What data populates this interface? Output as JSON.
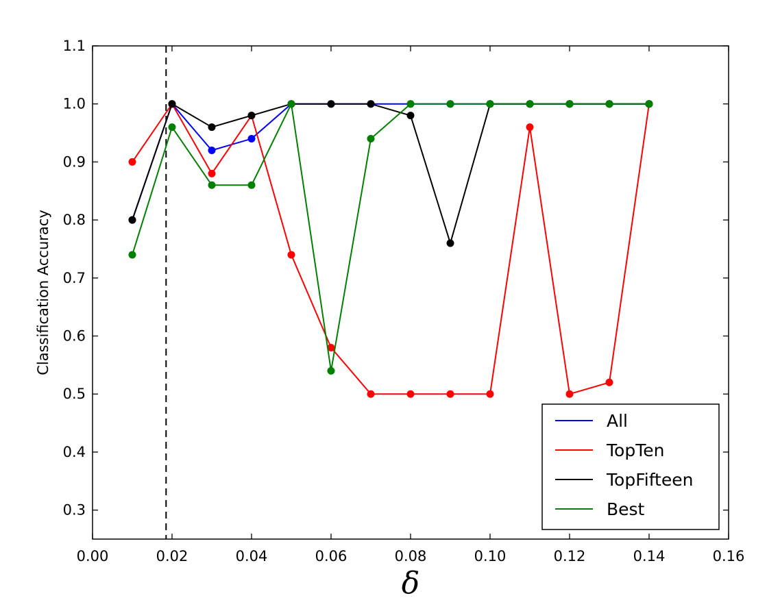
{
  "chart_data": {
    "type": "line",
    "title": "",
    "xlabel": "δ",
    "ylabel": "Classification Accuracy",
    "xlim": [
      0.0,
      0.16
    ],
    "ylim": [
      0.25,
      1.1
    ],
    "xticks": [
      "0.00",
      "0.02",
      "0.04",
      "0.06",
      "0.08",
      "0.10",
      "0.12",
      "0.14",
      "0.16"
    ],
    "yticks": [
      "0.3",
      "0.4",
      "0.5",
      "0.6",
      "0.7",
      "0.8",
      "0.9",
      "1.0",
      "1.1"
    ],
    "grid": false,
    "legend_position": "lower-right",
    "vline": {
      "x": 0.0185,
      "style": "dashed",
      "color": "#000000"
    },
    "x": [
      0.01,
      0.02,
      0.03,
      0.04,
      0.05,
      0.06,
      0.07,
      0.08,
      0.09,
      0.1,
      0.11,
      0.12,
      0.13,
      0.14
    ],
    "series": [
      {
        "name": "All",
        "color": "#0000ff",
        "values": [
          0.8,
          1.0,
          0.92,
          0.94,
          1.0,
          1.0,
          1.0,
          1.0,
          1.0,
          1.0,
          1.0,
          1.0,
          1.0,
          1.0
        ]
      },
      {
        "name": "TopTen",
        "color": "#ff0000",
        "values": [
          0.9,
          1.0,
          0.88,
          0.98,
          0.74,
          0.58,
          0.5,
          0.5,
          0.5,
          0.5,
          0.96,
          0.5,
          0.52,
          1.0
        ]
      },
      {
        "name": "TopFifteen",
        "color": "#000000",
        "values": [
          0.8,
          1.0,
          0.96,
          0.98,
          1.0,
          1.0,
          1.0,
          0.98,
          0.76,
          1.0,
          1.0,
          1.0,
          1.0,
          1.0
        ]
      },
      {
        "name": "Best",
        "color": "#007f00",
        "values": [
          0.74,
          0.96,
          0.86,
          0.86,
          1.0,
          0.54,
          0.94,
          1.0,
          1.0,
          1.0,
          1.0,
          1.0,
          1.0,
          1.0
        ]
      }
    ]
  }
}
